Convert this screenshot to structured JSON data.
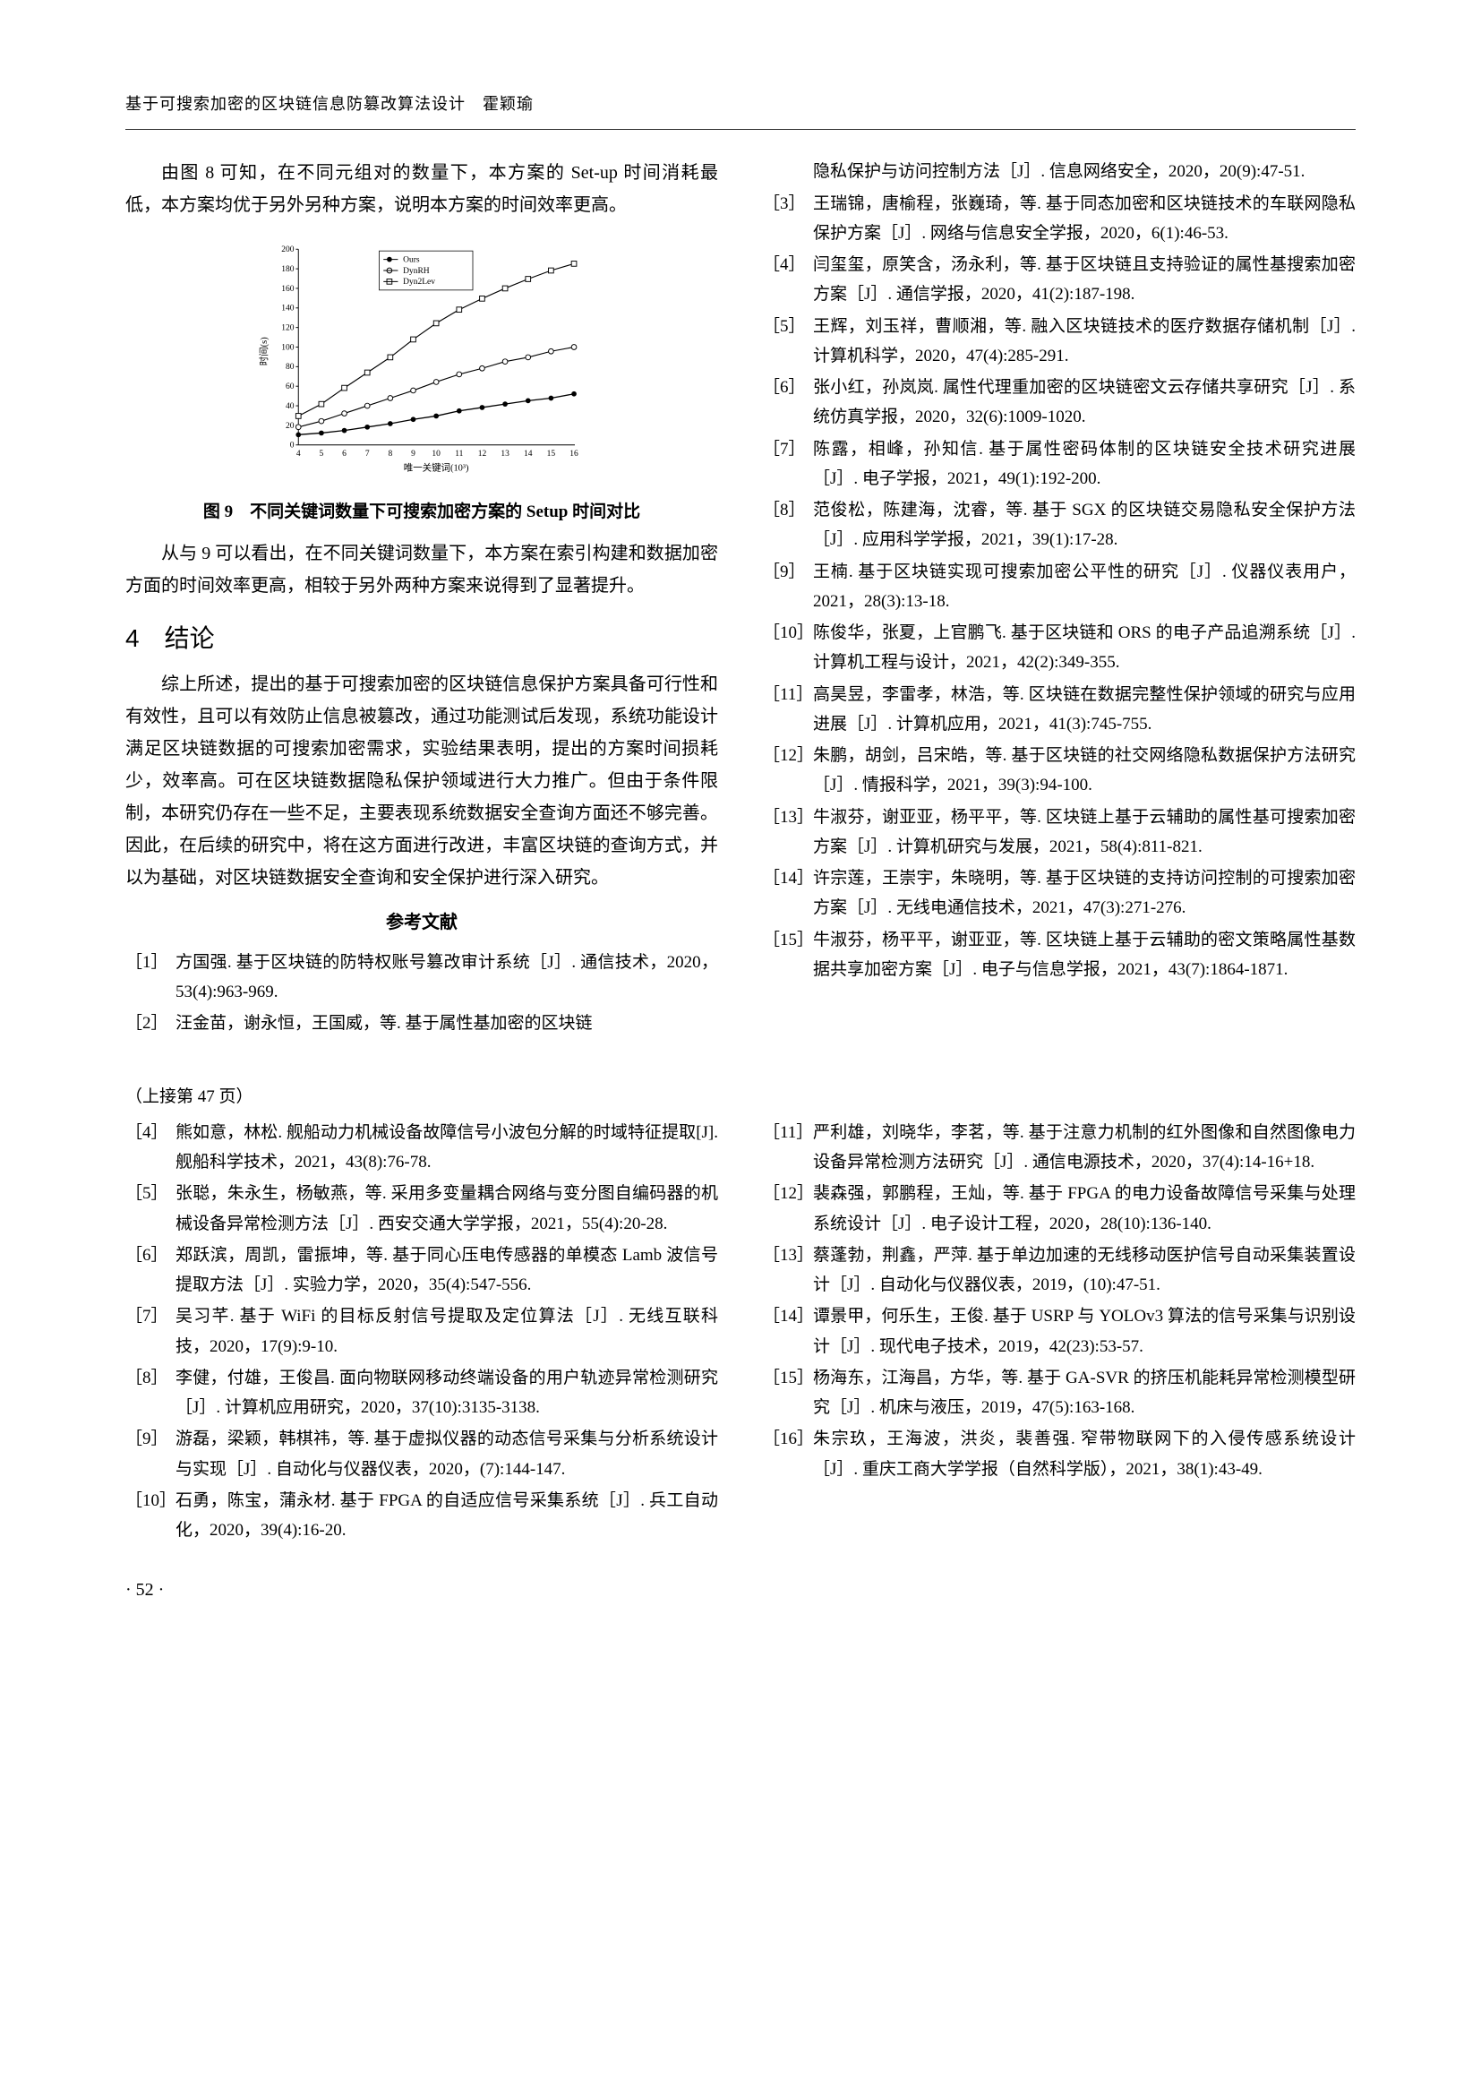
{
  "header": {
    "title": "基于可搜索加密的区块链信息防篡改算法设计　霍颖瑜"
  },
  "leftCol": {
    "para1": "由图 8 可知，在不同元组对的数量下，本方案的 Set-up 时间消耗最低，本方案均优于另外另种方案，说明本方案的时间效率更高。",
    "chart": {
      "xlabel": "唯一关键词(10³)",
      "ylabel": "时间(s)",
      "xlim": [
        4,
        16
      ],
      "ylim": [
        0,
        200
      ],
      "xticks": [
        4,
        5,
        6,
        7,
        8,
        9,
        10,
        11,
        12,
        13,
        14,
        15,
        16
      ],
      "yticks": [
        0,
        20,
        40,
        60,
        80,
        100,
        120,
        140,
        160,
        180,
        200
      ],
      "series": [
        {
          "name": "Ours",
          "marker": "filled-circle",
          "color": "#000000",
          "x": [
            4,
            5,
            6,
            7,
            8,
            9,
            10,
            11,
            12,
            13,
            14,
            15,
            16
          ],
          "y": [
            10,
            12,
            15,
            18,
            22,
            26,
            30,
            35,
            38,
            42,
            45,
            48,
            52
          ]
        },
        {
          "name": "DynRH",
          "marker": "open-circle",
          "color": "#000000",
          "x": [
            4,
            5,
            6,
            7,
            8,
            9,
            10,
            11,
            12,
            13,
            14,
            15,
            16
          ],
          "y": [
            18,
            24,
            32,
            40,
            48,
            56,
            64,
            72,
            78,
            85,
            90,
            96,
            100
          ]
        },
        {
          "name": "Dyn2Lev",
          "marker": "open-square",
          "color": "#000000",
          "x": [
            4,
            5,
            6,
            7,
            8,
            9,
            10,
            11,
            12,
            13,
            14,
            15,
            16
          ],
          "y": [
            30,
            42,
            58,
            74,
            90,
            108,
            124,
            138,
            150,
            160,
            170,
            178,
            185
          ]
        }
      ],
      "background": "#ffffff",
      "grid": false,
      "line_width": 1.2,
      "label_fontsize": 11,
      "tick_fontsize": 10,
      "legend_pos": "top-center"
    },
    "figCaption": "图 9　不同关键词数量下可搜索加密方案的 Setup 时间对比",
    "para2": "从与 9 可以看出，在不同关键词数量下，本方案在索引构建和数据加密方面的时间效率更高，相较于另外两种方案来说得到了显著提升。",
    "sectionNum": "4",
    "sectionTitle": "结论",
    "para3": "综上所述，提出的基于可搜索加密的区块链信息保护方案具备可行性和有效性，且可以有效防止信息被篡改，通过功能测试后发现，系统功能设计满足区块链数据的可搜索加密需求，实验结果表明，提出的方案时间损耗少，效率高。可在区块链数据隐私保护领域进行大力推广。但由于条件限制，本研究仍存在一些不足，主要表现系统数据安全查询方面还不够完善。因此，在后续的研究中，将在这方面进行改进，丰富区块链的查询方式，并以为基础，对区块链数据安全查询和安全保护进行深入研究。",
    "refsTitle": "参考文献",
    "refs": [
      {
        "n": "［1］",
        "t": "方国强. 基于区块链的防特权账号篡改审计系统［J］. 通信技术，2020，53(4):963-969."
      },
      {
        "n": "［2］",
        "t": "汪金苗，谢永恒，王国威，等. 基于属性基加密的区块链"
      }
    ]
  },
  "rightCol": {
    "cont": "隐私保护与访问控制方法［J］. 信息网络安全，2020，20(9):47-51.",
    "refs": [
      {
        "n": "［3］",
        "t": "王瑞锦，唐榆程，张巍琦，等. 基于同态加密和区块链技术的车联网隐私保护方案［J］. 网络与信息安全学报，2020，6(1):46-53."
      },
      {
        "n": "［4］",
        "t": "闫玺玺，原笑含，汤永利，等. 基于区块链且支持验证的属性基搜索加密方案［J］. 通信学报，2020，41(2):187-198."
      },
      {
        "n": "［5］",
        "t": "王辉，刘玉祥，曹顺湘，等. 融入区块链技术的医疗数据存储机制［J］. 计算机科学，2020，47(4):285-291."
      },
      {
        "n": "［6］",
        "t": "张小红，孙岚岚. 属性代理重加密的区块链密文云存储共享研究［J］. 系统仿真学报，2020，32(6):1009-1020."
      },
      {
        "n": "［7］",
        "t": "陈露，相峰，孙知信. 基于属性密码体制的区块链安全技术研究进展［J］. 电子学报，2021，49(1):192-200."
      },
      {
        "n": "［8］",
        "t": "范俊松，陈建海，沈睿，等. 基于 SGX 的区块链交易隐私安全保护方法［J］. 应用科学学报，2021，39(1):17-28."
      },
      {
        "n": "［9］",
        "t": "王楠. 基于区块链实现可搜索加密公平性的研究［J］. 仪器仪表用户，2021，28(3):13-18."
      },
      {
        "n": "［10］",
        "t": "陈俊华，张夏，上官鹏飞. 基于区块链和 ORS 的电子产品追溯系统［J］. 计算机工程与设计，2021，42(2):349-355."
      },
      {
        "n": "［11］",
        "t": "高昊昱，李雷孝，林浩，等. 区块链在数据完整性保护领域的研究与应用进展［J］. 计算机应用，2021，41(3):745-755."
      },
      {
        "n": "［12］",
        "t": "朱鹏，胡剑，吕宋皓，等. 基于区块链的社交网络隐私数据保护方法研究［J］. 情报科学，2021，39(3):94-100."
      },
      {
        "n": "［13］",
        "t": "牛淑芬，谢亚亚，杨平平，等. 区块链上基于云辅助的属性基可搜索加密方案［J］. 计算机研究与发展，2021，58(4):811-821."
      },
      {
        "n": "［14］",
        "t": "许宗莲，王崇宇，朱晓明，等. 基于区块链的支持访问控制的可搜索加密方案［J］. 无线电通信技术，2021，47(3):271-276."
      },
      {
        "n": "［15］",
        "t": "牛淑芬，杨平平，谢亚亚，等. 区块链上基于云辅助的密文策略属性基数据共享加密方案［J］. 电子与信息学报，2021，43(7):1864-1871."
      }
    ]
  },
  "bottom": {
    "contNote": "（上接第 47 页）",
    "left": [
      {
        "n": "［4］",
        "t": "熊如意，林松. 舰船动力机械设备故障信号小波包分解的时域特征提取[J]. 舰船科学技术，2021，43(8):76-78."
      },
      {
        "n": "［5］",
        "t": "张聪，朱永生，杨敏燕，等. 采用多变量耦合网络与变分图自编码器的机械设备异常检测方法［J］. 西安交通大学学报，2021，55(4):20-28."
      },
      {
        "n": "［6］",
        "t": "郑跃滨，周凯，雷振坤，等. 基于同心压电传感器的单模态 Lamb 波信号提取方法［J］. 实验力学，2020，35(4):547-556."
      },
      {
        "n": "［7］",
        "t": "吴习芊. 基于 WiFi 的目标反射信号提取及定位算法［J］. 无线互联科技，2020，17(9):9-10."
      },
      {
        "n": "［8］",
        "t": "李健，付雄，王俊昌. 面向物联网移动终端设备的用户轨迹异常检测研究［J］. 计算机应用研究，2020，37(10):3135-3138."
      },
      {
        "n": "［9］",
        "t": "游磊，梁颖，韩棋祎，等. 基于虚拟仪器的动态信号采集与分析系统设计与实现［J］. 自动化与仪器仪表，2020，(7):144-147."
      },
      {
        "n": "［10］",
        "t": "石勇，陈宝，蒲永材. 基于 FPGA 的自适应信号采集系统［J］. 兵工自动化，2020，39(4):16-20."
      }
    ],
    "right": [
      {
        "n": "［11］",
        "t": "严利雄，刘晓华，李茗，等. 基于注意力机制的红外图像和自然图像电力设备异常检测方法研究［J］. 通信电源技术，2020，37(4):14-16+18."
      },
      {
        "n": "［12］",
        "t": "裴森强，郭鹏程，王灿，等. 基于 FPGA 的电力设备故障信号采集与处理系统设计［J］. 电子设计工程，2020，28(10):136-140."
      },
      {
        "n": "［13］",
        "t": "蔡蓬勃，荆鑫，严萍. 基于单边加速的无线移动医护信号自动采集装置设计［J］. 自动化与仪器仪表，2019，(10):47-51."
      },
      {
        "n": "［14］",
        "t": "谭景甲，何乐生，王俊. 基于 USRP 与 YOLOv3 算法的信号采集与识别设计［J］. 现代电子技术，2019，42(23):53-57."
      },
      {
        "n": "［15］",
        "t": "杨海东，江海昌，方华，等. 基于 GA-SVR 的挤压机能耗异常检测模型研究［J］. 机床与液压，2019，47(5):163-168."
      },
      {
        "n": "［16］",
        "t": "朱宗玖，王海波，洪炎，裴善强. 窄带物联网下的入侵传感系统设计［J］. 重庆工商大学学报（自然科学版），2021，38(1):43-49."
      }
    ]
  },
  "pageNum": "· 52 ·"
}
